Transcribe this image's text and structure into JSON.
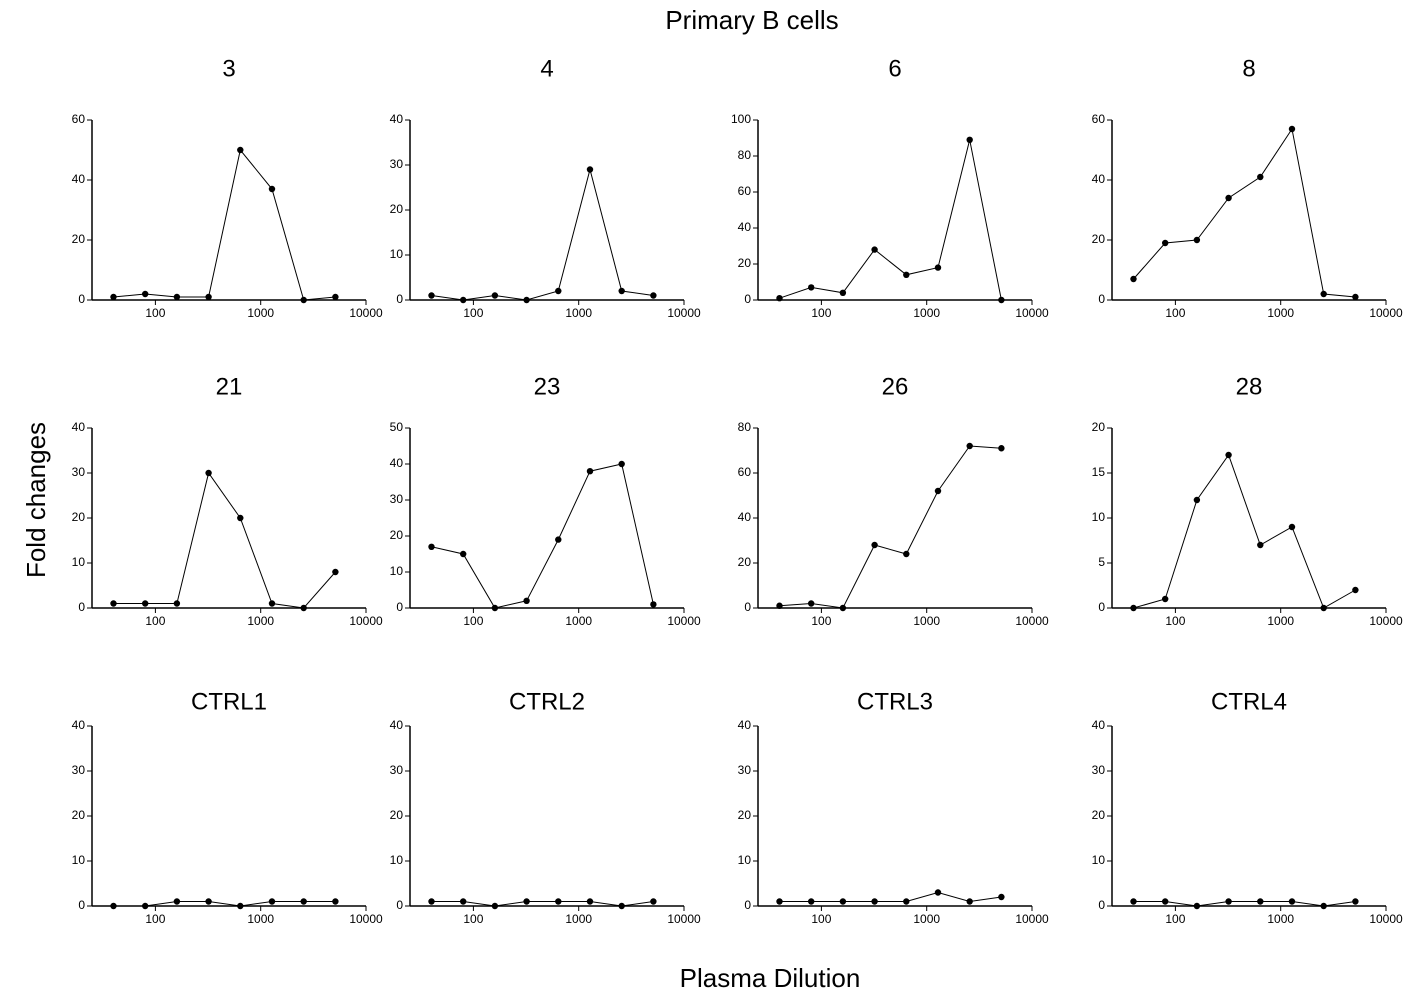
{
  "title": "Primary B cells",
  "ylabel": "Fold changes",
  "xlabel": "Plasma Dilution",
  "chart_data": [
    {
      "type": "line",
      "title": "3",
      "x": [
        40,
        80,
        160,
        320,
        640,
        1280,
        2560,
        5120
      ],
      "values": [
        1,
        2,
        1,
        1,
        50,
        37,
        0,
        1
      ],
      "color": "#000000",
      "xscale": "log",
      "xlim": [
        25,
        10000
      ],
      "xticks": [
        100,
        1000,
        10000
      ],
      "ylim": [
        0,
        60
      ],
      "yticks": [
        0,
        20,
        40,
        60
      ]
    },
    {
      "type": "line",
      "title": "4",
      "x": [
        40,
        80,
        160,
        320,
        640,
        1280,
        2560,
        5120
      ],
      "values": [
        1,
        0,
        1,
        0,
        2,
        29,
        2,
        1
      ],
      "color": "#000000",
      "xscale": "log",
      "xlim": [
        25,
        10000
      ],
      "xticks": [
        100,
        1000,
        10000
      ],
      "ylim": [
        0,
        40
      ],
      "yticks": [
        0,
        10,
        20,
        30,
        40
      ]
    },
    {
      "type": "line",
      "title": "6",
      "x": [
        40,
        80,
        160,
        320,
        640,
        1280,
        2560,
        5120
      ],
      "values": [
        1,
        7,
        4,
        28,
        14,
        18,
        89,
        0
      ],
      "color": "#000000",
      "xscale": "log",
      "xlim": [
        25,
        10000
      ],
      "xticks": [
        100,
        1000,
        10000
      ],
      "ylim": [
        0,
        100
      ],
      "yticks": [
        0,
        20,
        40,
        60,
        80,
        100
      ]
    },
    {
      "type": "line",
      "title": "8",
      "x": [
        40,
        80,
        160,
        320,
        640,
        1280,
        2560,
        5120
      ],
      "values": [
        7,
        19,
        20,
        34,
        41,
        57,
        2,
        1
      ],
      "color": "#000000",
      "xscale": "log",
      "xlim": [
        25,
        10000
      ],
      "xticks": [
        100,
        1000,
        10000
      ],
      "ylim": [
        0,
        60
      ],
      "yticks": [
        0,
        20,
        40,
        60
      ]
    },
    {
      "type": "line",
      "title": "21",
      "x": [
        40,
        80,
        160,
        320,
        640,
        1280,
        2560,
        5120
      ],
      "values": [
        1,
        1,
        1,
        30,
        20,
        1,
        0,
        8
      ],
      "color": "#000000",
      "xscale": "log",
      "xlim": [
        25,
        10000
      ],
      "xticks": [
        100,
        1000,
        10000
      ],
      "ylim": [
        0,
        40
      ],
      "yticks": [
        0,
        10,
        20,
        30,
        40
      ]
    },
    {
      "type": "line",
      "title": "23",
      "x": [
        40,
        80,
        160,
        320,
        640,
        1280,
        2560,
        5120
      ],
      "values": [
        17,
        15,
        0,
        2,
        19,
        38,
        40,
        1
      ],
      "color": "#000000",
      "xscale": "log",
      "xlim": [
        25,
        10000
      ],
      "xticks": [
        100,
        1000,
        10000
      ],
      "ylim": [
        0,
        50
      ],
      "yticks": [
        0,
        10,
        20,
        30,
        40,
        50
      ]
    },
    {
      "type": "line",
      "title": "26",
      "x": [
        40,
        80,
        160,
        320,
        640,
        1280,
        2560,
        5120
      ],
      "values": [
        1,
        2,
        0,
        28,
        24,
        52,
        72,
        71
      ],
      "color": "#000000",
      "xscale": "log",
      "xlim": [
        25,
        10000
      ],
      "xticks": [
        100,
        1000,
        10000
      ],
      "ylim": [
        0,
        80
      ],
      "yticks": [
        0,
        20,
        40,
        60,
        80
      ]
    },
    {
      "type": "line",
      "title": "28",
      "x": [
        40,
        80,
        160,
        320,
        640,
        1280,
        2560,
        5120
      ],
      "values": [
        0,
        1,
        12,
        17,
        7,
        9,
        0,
        2
      ],
      "color": "#000000",
      "xscale": "log",
      "xlim": [
        25,
        10000
      ],
      "xticks": [
        100,
        1000,
        10000
      ],
      "ylim": [
        0,
        20
      ],
      "yticks": [
        0,
        5,
        10,
        15,
        20
      ]
    },
    {
      "type": "line",
      "title": "CTRL1",
      "x": [
        40,
        80,
        160,
        320,
        640,
        1280,
        2560,
        5120
      ],
      "values": [
        0,
        0,
        1,
        1,
        0,
        1,
        1,
        1
      ],
      "color": "#000000",
      "xscale": "log",
      "xlim": [
        25,
        10000
      ],
      "xticks": [
        100,
        1000,
        10000
      ],
      "ylim": [
        0,
        40
      ],
      "yticks": [
        0,
        10,
        20,
        30,
        40
      ]
    },
    {
      "type": "line",
      "title": "CTRL2",
      "x": [
        40,
        80,
        160,
        320,
        640,
        1280,
        2560,
        5120
      ],
      "values": [
        1,
        1,
        0,
        1,
        1,
        1,
        0,
        1
      ],
      "color": "#000000",
      "xscale": "log",
      "xlim": [
        25,
        10000
      ],
      "xticks": [
        100,
        1000,
        10000
      ],
      "ylim": [
        0,
        40
      ],
      "yticks": [
        0,
        10,
        20,
        30,
        40
      ]
    },
    {
      "type": "line",
      "title": "CTRL3",
      "x": [
        40,
        80,
        160,
        320,
        640,
        1280,
        2560,
        5120
      ],
      "values": [
        1,
        1,
        1,
        1,
        1,
        3,
        1,
        2
      ],
      "color": "#000000",
      "xscale": "log",
      "xlim": [
        25,
        10000
      ],
      "xticks": [
        100,
        1000,
        10000
      ],
      "ylim": [
        0,
        40
      ],
      "yticks": [
        0,
        10,
        20,
        30,
        40
      ]
    },
    {
      "type": "line",
      "title": "CTRL4",
      "x": [
        40,
        80,
        160,
        320,
        640,
        1280,
        2560,
        5120
      ],
      "values": [
        1,
        1,
        0,
        1,
        1,
        1,
        0,
        1
      ],
      "color": "#000000",
      "xscale": "log",
      "xlim": [
        25,
        10000
      ],
      "xticks": [
        100,
        1000,
        10000
      ],
      "ylim": [
        0,
        40
      ],
      "yticks": [
        0,
        10,
        20,
        30,
        40
      ]
    }
  ]
}
